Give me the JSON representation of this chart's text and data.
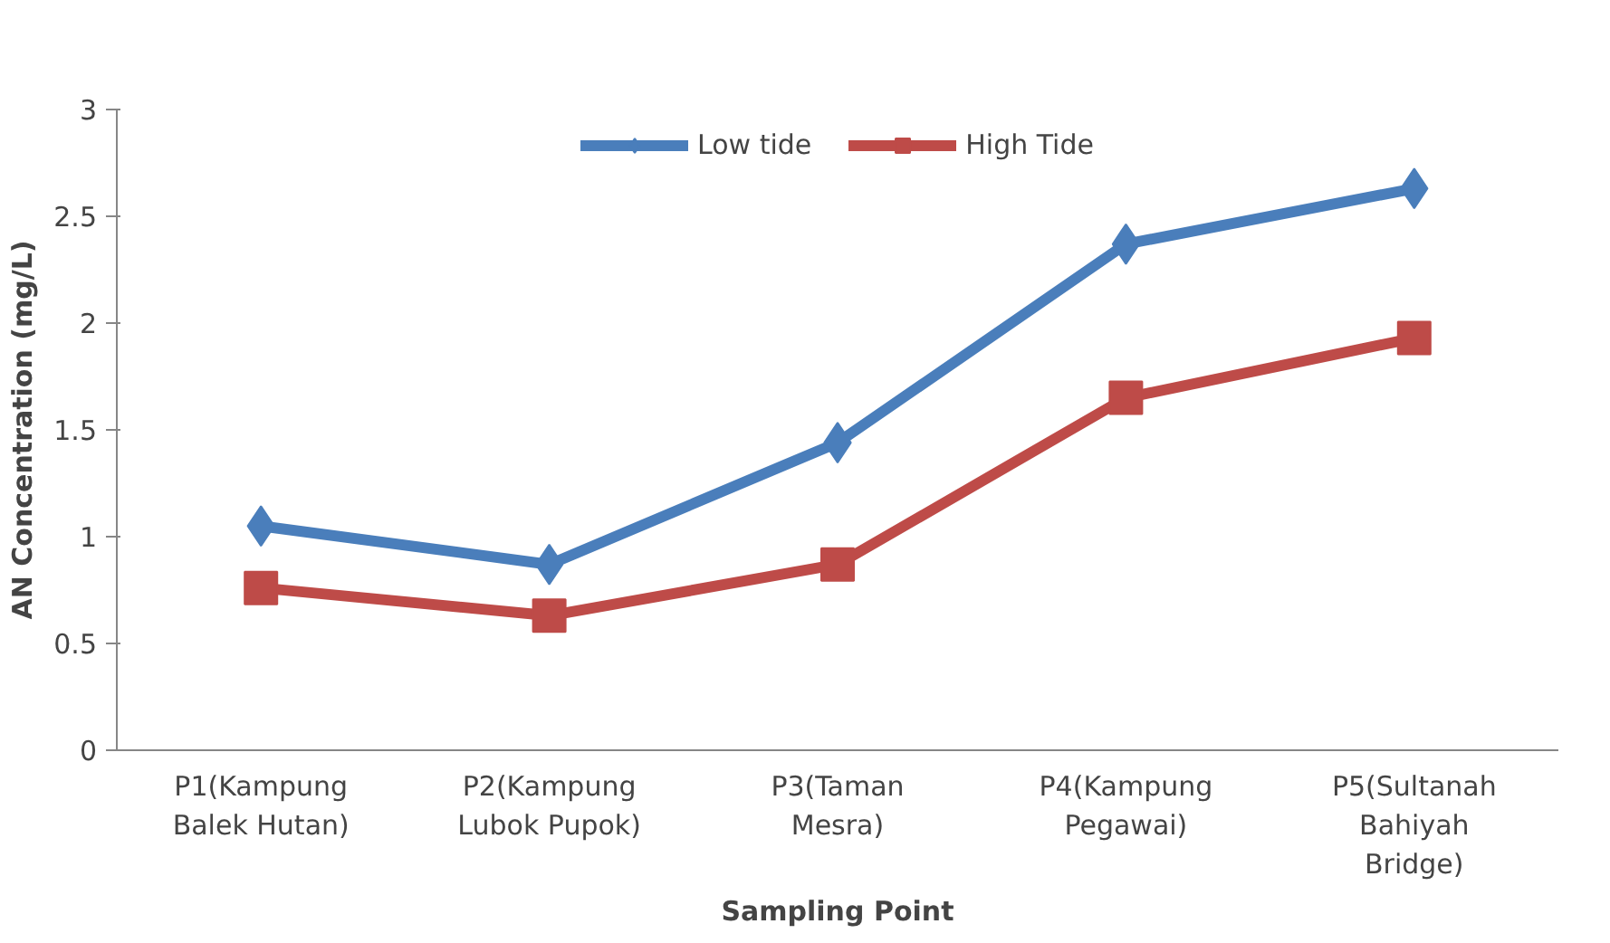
{
  "chart_data": {
    "type": "line",
    "xlabel": "Sampling Point",
    "ylabel": "AN Concentration (mg/L)",
    "categories": [
      "P1(Kampung\nBalek Hutan)",
      "P2(Kampung\nLubok Pupok)",
      "P3(Taman\nMesra)",
      "P4(Kampung\nPegawai)",
      "P5(Sultanah\nBahiyah\nBridge)"
    ],
    "series": [
      {
        "name": "Low tide",
        "color": "#4a7ebb",
        "marker": "diamond",
        "values": [
          1.05,
          0.87,
          1.44,
          2.37,
          2.63
        ]
      },
      {
        "name": "High Tide",
        "color": "#be4b48",
        "marker": "square",
        "values": [
          0.76,
          0.63,
          0.87,
          1.65,
          1.93
        ]
      }
    ],
    "ylim": [
      0,
      3
    ],
    "yticks": [
      0,
      0.5,
      1,
      1.5,
      2,
      2.5,
      3
    ],
    "grid": false,
    "legend": "top",
    "line_style": "solid"
  }
}
